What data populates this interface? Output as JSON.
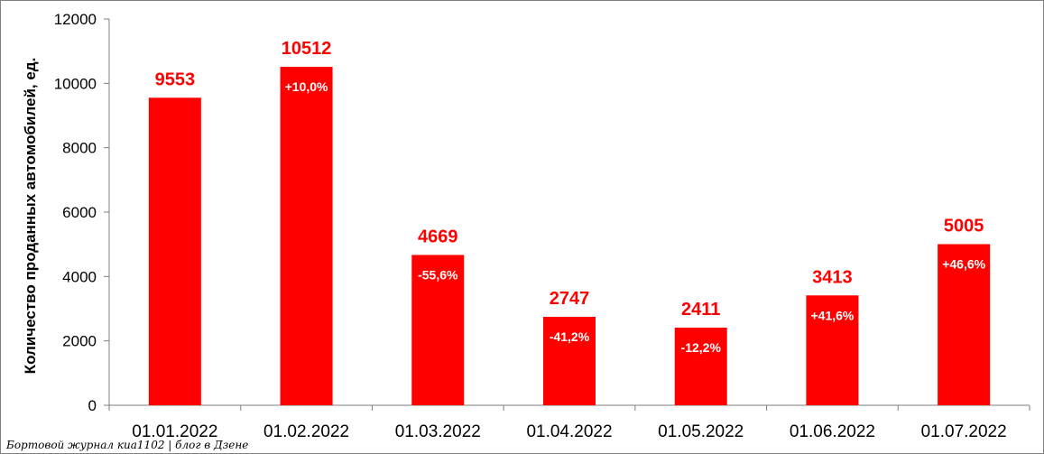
{
  "chart_data": {
    "type": "bar",
    "categories": [
      "01.01.2022",
      "01.02.2022",
      "01.03.2022",
      "01.04.2022",
      "01.05.2022",
      "01.06.2022",
      "01.07.2022"
    ],
    "values": [
      9553,
      10512,
      4669,
      2747,
      2411,
      3413,
      5005
    ],
    "value_labels": [
      "9553",
      "10512",
      "4669",
      "2747",
      "2411",
      "3413",
      "5005"
    ],
    "change_labels": [
      "",
      "+10,0%",
      "-55,6%",
      "-41,2%",
      "-12,2%",
      "+41,6%",
      "+46,6%"
    ],
    "title": "",
    "xlabel": "",
    "ylabel": "Количество проданных  автомобилей, ед.",
    "ylim": [
      0,
      12000
    ],
    "yticks": [
      0,
      2000,
      4000,
      6000,
      8000,
      10000,
      12000
    ],
    "grid": false,
    "legend": "none",
    "colors": {
      "bar": "#ff0000",
      "value_label": "#ff0000",
      "change_label": "#ffffff",
      "axis": "#7f7f7f"
    }
  },
  "watermark": "Бортовой журнал киа1102 | блог в Дзене"
}
